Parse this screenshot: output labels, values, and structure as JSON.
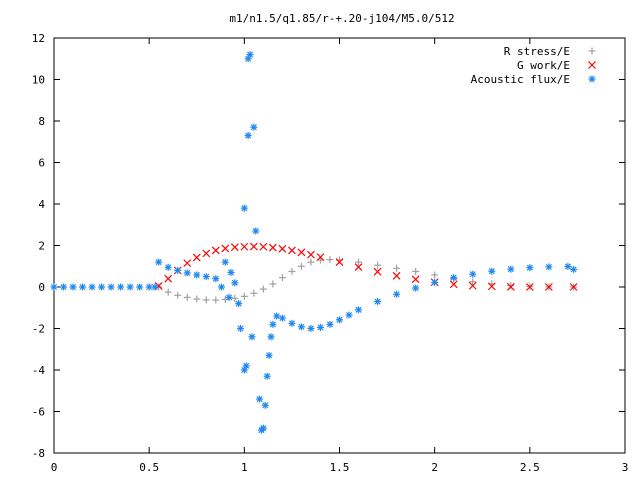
{
  "chart_data": {
    "type": "scatter",
    "title": "m1/n1.5/q1.85/r-+.20-j104/M5.0/512",
    "xlabel": "",
    "ylabel": "",
    "xlim": [
      0,
      3
    ],
    "ylim": [
      -8,
      12
    ],
    "xticks": [
      "0",
      "0.5",
      "1",
      "1.5",
      "2",
      "2.5",
      "3"
    ],
    "yticks": [
      "-8",
      "-6",
      "-4",
      "-2",
      "0",
      "2",
      "4",
      "6",
      "8",
      "10",
      "12"
    ],
    "grid": false,
    "legend_position": "top-right",
    "series": [
      {
        "name": "R stress/E",
        "color": "#a0a0a0",
        "marker": "plus",
        "points": [
          [
            0.55,
            0.0
          ],
          [
            0.6,
            -0.25
          ],
          [
            0.65,
            -0.4
          ],
          [
            0.7,
            -0.5
          ],
          [
            0.75,
            -0.58
          ],
          [
            0.8,
            -0.62
          ],
          [
            0.85,
            -0.63
          ],
          [
            0.9,
            -0.6
          ],
          [
            0.95,
            -0.55
          ],
          [
            1.0,
            -0.45
          ],
          [
            1.05,
            -0.3
          ],
          [
            1.1,
            -0.1
          ],
          [
            1.15,
            0.15
          ],
          [
            1.2,
            0.45
          ],
          [
            1.25,
            0.75
          ],
          [
            1.3,
            1.0
          ],
          [
            1.35,
            1.2
          ],
          [
            1.4,
            1.3
          ],
          [
            1.45,
            1.32
          ],
          [
            1.5,
            1.3
          ],
          [
            1.6,
            1.2
          ],
          [
            1.7,
            1.05
          ],
          [
            1.8,
            0.9
          ],
          [
            1.9,
            0.75
          ],
          [
            2.0,
            0.58
          ],
          [
            2.1,
            0.4
          ],
          [
            2.2,
            0.25
          ],
          [
            2.3,
            0.15
          ],
          [
            2.4,
            0.07
          ],
          [
            2.5,
            0.03
          ],
          [
            2.6,
            0.01
          ],
          [
            2.73,
            0.0
          ]
        ]
      },
      {
        "name": "G work/E",
        "color": "#ff0000",
        "marker": "cross",
        "points": [
          [
            0.55,
            0.05
          ],
          [
            0.6,
            0.4
          ],
          [
            0.65,
            0.8
          ],
          [
            0.7,
            1.15
          ],
          [
            0.75,
            1.42
          ],
          [
            0.8,
            1.62
          ],
          [
            0.85,
            1.76
          ],
          [
            0.9,
            1.86
          ],
          [
            0.95,
            1.92
          ],
          [
            1.0,
            1.94
          ],
          [
            1.05,
            1.95
          ],
          [
            1.1,
            1.94
          ],
          [
            1.15,
            1.9
          ],
          [
            1.2,
            1.84
          ],
          [
            1.25,
            1.76
          ],
          [
            1.3,
            1.67
          ],
          [
            1.35,
            1.56
          ],
          [
            1.4,
            1.44
          ],
          [
            1.5,
            1.2
          ],
          [
            1.6,
            0.96
          ],
          [
            1.7,
            0.74
          ],
          [
            1.8,
            0.54
          ],
          [
            1.9,
            0.37
          ],
          [
            2.0,
            0.23
          ],
          [
            2.1,
            0.13
          ],
          [
            2.2,
            0.06
          ],
          [
            2.3,
            0.03
          ],
          [
            2.4,
            0.01
          ],
          [
            2.5,
            0.0
          ],
          [
            2.6,
            0.0
          ],
          [
            2.73,
            0.0
          ]
        ]
      },
      {
        "name": "Acoustic flux/E",
        "color": "#2288ee",
        "marker": "star",
        "points": [
          [
            0.0,
            0.0
          ],
          [
            0.05,
            0.0
          ],
          [
            0.1,
            0.0
          ],
          [
            0.15,
            0.0
          ],
          [
            0.2,
            0.0
          ],
          [
            0.25,
            0.0
          ],
          [
            0.3,
            0.0
          ],
          [
            0.35,
            0.0
          ],
          [
            0.4,
            0.0
          ],
          [
            0.45,
            0.0
          ],
          [
            0.5,
            0.0
          ],
          [
            0.53,
            0.0
          ],
          [
            0.55,
            1.2
          ],
          [
            0.6,
            0.95
          ],
          [
            0.65,
            0.8
          ],
          [
            0.7,
            0.68
          ],
          [
            0.75,
            0.58
          ],
          [
            0.8,
            0.5
          ],
          [
            0.85,
            0.4
          ],
          [
            0.88,
            0.0
          ],
          [
            0.9,
            1.2
          ],
          [
            0.92,
            -0.5
          ],
          [
            0.93,
            0.7
          ],
          [
            0.95,
            0.2
          ],
          [
            0.97,
            -0.8
          ],
          [
            0.98,
            -2.0
          ],
          [
            1.0,
            -4.0
          ],
          [
            1.0,
            3.8
          ],
          [
            1.01,
            -3.8
          ],
          [
            1.02,
            7.3
          ],
          [
            1.02,
            11.0
          ],
          [
            1.03,
            11.2
          ],
          [
            1.04,
            -2.4
          ],
          [
            1.05,
            7.7
          ],
          [
            1.06,
            2.7
          ],
          [
            1.08,
            -5.4
          ],
          [
            1.09,
            -6.9
          ],
          [
            1.1,
            -6.8
          ],
          [
            1.11,
            -5.7
          ],
          [
            1.12,
            -4.3
          ],
          [
            1.13,
            -3.3
          ],
          [
            1.14,
            -2.4
          ],
          [
            1.15,
            -1.8
          ],
          [
            1.17,
            -1.4
          ],
          [
            1.2,
            -1.5
          ],
          [
            1.25,
            -1.75
          ],
          [
            1.3,
            -1.92
          ],
          [
            1.35,
            -2.0
          ],
          [
            1.4,
            -1.95
          ],
          [
            1.45,
            -1.8
          ],
          [
            1.5,
            -1.58
          ],
          [
            1.55,
            -1.35
          ],
          [
            1.6,
            -1.1
          ],
          [
            1.7,
            -0.7
          ],
          [
            1.8,
            -0.35
          ],
          [
            1.9,
            -0.05
          ],
          [
            2.0,
            0.22
          ],
          [
            2.1,
            0.45
          ],
          [
            2.2,
            0.62
          ],
          [
            2.3,
            0.76
          ],
          [
            2.4,
            0.86
          ],
          [
            2.5,
            0.93
          ],
          [
            2.6,
            0.97
          ],
          [
            2.7,
            0.99
          ],
          [
            2.73,
            0.85
          ]
        ]
      }
    ]
  }
}
